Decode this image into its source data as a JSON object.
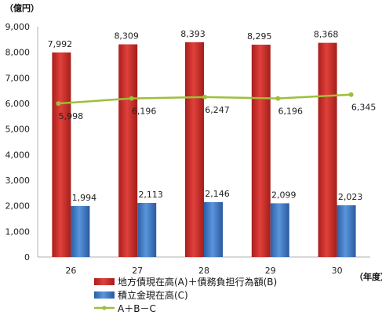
{
  "chart_data": {
    "type": "bar",
    "y_unit_label": "（億円）",
    "x_unit_label": "（年度）",
    "categories": [
      "26",
      "27",
      "28",
      "29",
      "30"
    ],
    "ylim": [
      0,
      9000
    ],
    "yticks": [
      0,
      1000,
      2000,
      3000,
      4000,
      5000,
      6000,
      7000,
      8000,
      9000
    ],
    "ytick_labels": [
      "0",
      "1,000",
      "2,000",
      "3,000",
      "4,000",
      "5,000",
      "6,000",
      "7,000",
      "8,000",
      "9,000"
    ],
    "grid": false,
    "legend_position": "bottom",
    "series": [
      {
        "name": "地方債現在高(A)＋債務負担行為額(B)",
        "kind": "bar",
        "color": "#cc2f2b",
        "values": [
          7992,
          8309,
          8393,
          8295,
          8368
        ],
        "labels": [
          "7,992",
          "8,309",
          "8,393",
          "8,295",
          "8,368"
        ]
      },
      {
        "name": "積立金現在高(C)",
        "kind": "bar",
        "color": "#3d79c6",
        "values": [
          1994,
          2113,
          2146,
          2099,
          2023
        ],
        "labels": [
          "1,994",
          "2,113",
          "2,146",
          "2,099",
          "2,023"
        ]
      },
      {
        "name": "A＋B－C",
        "kind": "line",
        "color": "#9dbf3a",
        "values": [
          5998,
          6196,
          6247,
          6196,
          6345
        ],
        "labels": [
          "5,998",
          "6,196",
          "6,247",
          "6,196",
          "6,345"
        ]
      }
    ]
  }
}
